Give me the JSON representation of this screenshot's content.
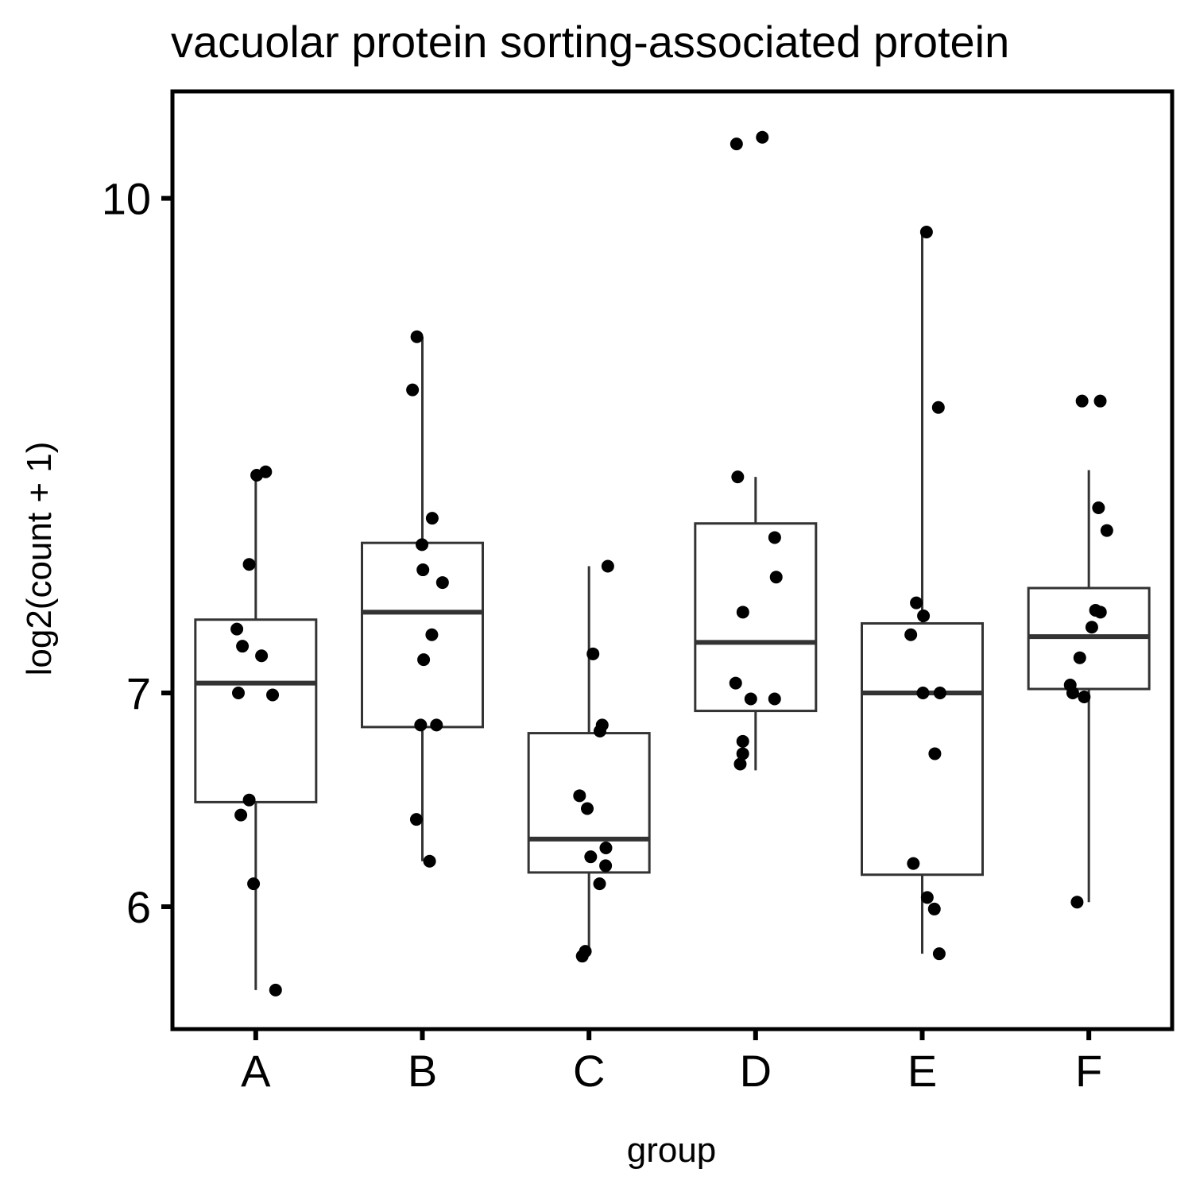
{
  "chart_data": {
    "type": "box",
    "title": "vacuolar protein sorting-associated protein",
    "xlabel": "group",
    "ylabel": "log2(count + 1)",
    "y_scale": "log",
    "y_ticks": [
      6,
      7,
      10
    ],
    "ylim": [
      5.55,
      10.4
    ],
    "grid": false,
    "colors": {
      "box_stroke": "#333333",
      "point": "#000000",
      "frame": "#000000"
    },
    "categories": [
      "A",
      "B",
      "C",
      "D",
      "E",
      "F"
    ],
    "boxes": [
      {
        "group": "A",
        "whisker_low": 5.65,
        "q1": 6.47,
        "median": 7.05,
        "q3": 7.38,
        "whisker_high": 8.21
      },
      {
        "group": "B",
        "whisker_low": 6.2,
        "q1": 6.83,
        "median": 7.42,
        "q3": 7.8,
        "whisker_high": 9.05
      },
      {
        "group": "C",
        "whisker_low": 5.8,
        "q1": 6.15,
        "median": 6.3,
        "q3": 6.8,
        "whisker_high": 7.67
      },
      {
        "group": "D",
        "whisker_low": 6.62,
        "q1": 6.91,
        "median": 7.26,
        "q3": 7.91,
        "whisker_high": 8.18
      },
      {
        "group": "E",
        "whisker_low": 5.8,
        "q1": 6.14,
        "median": 7.0,
        "q3": 7.36,
        "whisker_high": 9.76
      },
      {
        "group": "F",
        "whisker_low": 6.02,
        "q1": 7.02,
        "median": 7.29,
        "q3": 7.55,
        "whisker_high": 8.22
      }
    ],
    "points": {
      "A": [
        8.21,
        8.19,
        7.68,
        7.33,
        7.24,
        7.19,
        7.0,
        6.99,
        6.48,
        6.41,
        6.1,
        5.65
      ],
      "B": [
        9.05,
        8.71,
        7.94,
        7.79,
        7.65,
        7.58,
        7.3,
        7.17,
        6.84,
        6.84,
        6.39,
        6.2
      ],
      "C": [
        7.67,
        7.2,
        6.84,
        6.81,
        6.5,
        6.44,
        6.26,
        6.22,
        6.18,
        6.1,
        5.81,
        5.79
      ],
      "D": [
        10.45,
        10.4,
        8.18,
        7.83,
        7.61,
        7.42,
        7.05,
        6.97,
        6.97,
        6.76,
        6.7,
        6.65
      ],
      "E": [
        9.76,
        8.6,
        7.47,
        7.4,
        7.3,
        7.0,
        7.0,
        6.7,
        6.19,
        6.04,
        5.99,
        5.8
      ],
      "F": [
        8.64,
        8.64,
        8.0,
        7.87,
        7.43,
        7.42,
        7.34,
        7.18,
        7.04,
        7.0,
        6.98,
        6.02
      ]
    }
  }
}
